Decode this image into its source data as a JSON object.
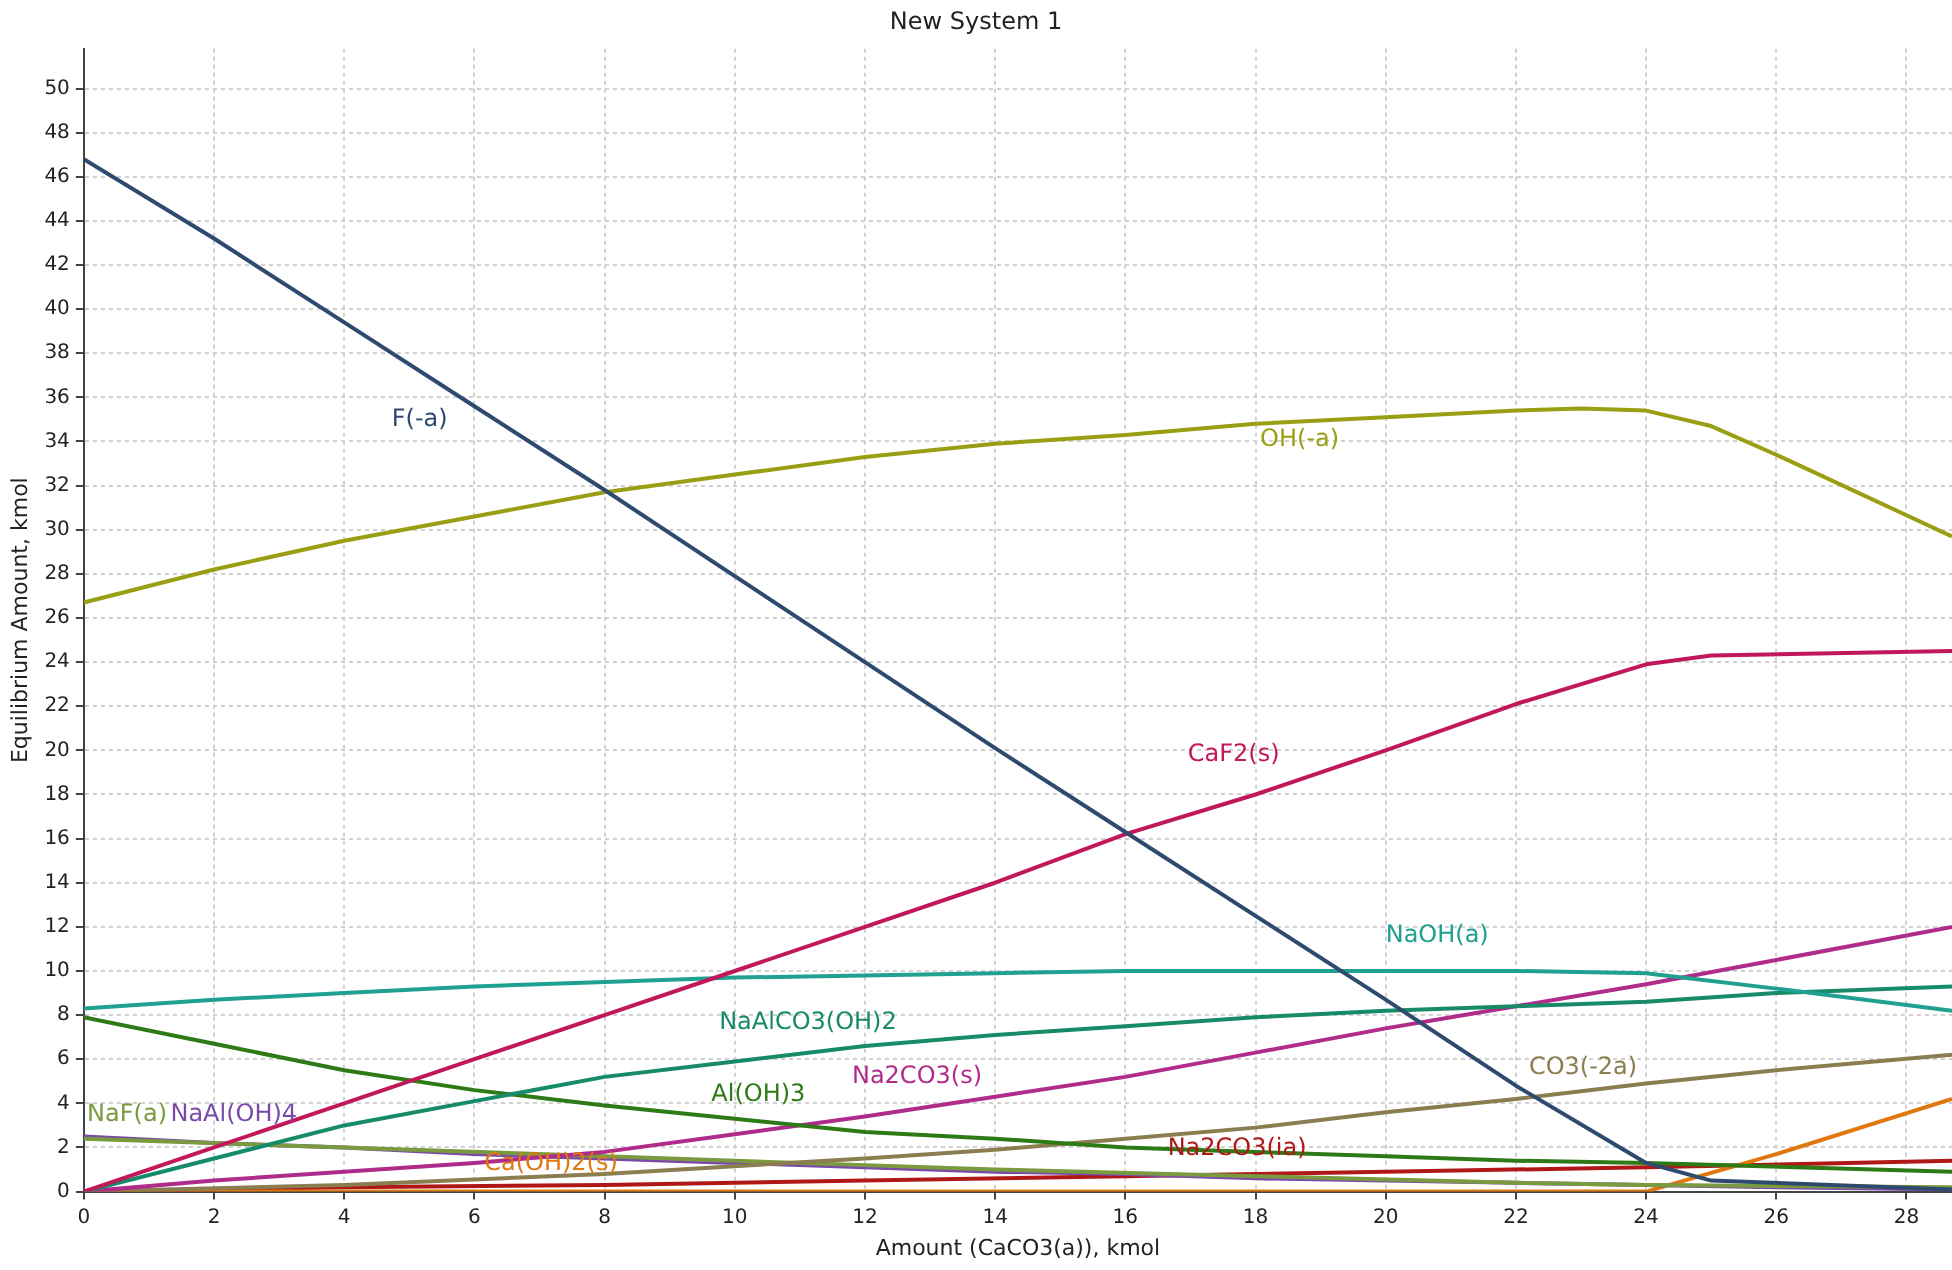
{
  "chart_data": {
    "type": "line",
    "title": "New System 1",
    "xlabel": "Amount (CaCO3(a)), kmol",
    "ylabel": "Equilibrium Amount, kmol",
    "xlim": [
      0,
      28.7
    ],
    "ylim": [
      0,
      51.8
    ],
    "xticks": [
      0,
      2,
      4,
      6,
      8,
      10,
      12,
      14,
      16,
      18,
      20,
      22,
      24,
      26,
      28
    ],
    "yticks": [
      0,
      2,
      4,
      6,
      8,
      10,
      12,
      14,
      16,
      18,
      20,
      22,
      24,
      26,
      28,
      30,
      32,
      34,
      36,
      38,
      40,
      42,
      44,
      46,
      48,
      50
    ],
    "grid": true,
    "legend": false,
    "marker": "none",
    "line_style": "solid",
    "series": [
      {
        "name": "F(-a)",
        "color": "#2e4a6e",
        "x": [
          0,
          2,
          4,
          6,
          8,
          10,
          12,
          14,
          16,
          18,
          20,
          22,
          24,
          25,
          28.7
        ],
        "values": [
          46.8,
          43.2,
          39.4,
          35.6,
          31.8,
          27.9,
          24.0,
          20.1,
          16.3,
          12.5,
          8.7,
          4.8,
          1.3,
          0.5,
          0.1
        ]
      },
      {
        "name": "OH(-a)",
        "color": "#9a9e12",
        "x": [
          0,
          2,
          4,
          6,
          8,
          10,
          12,
          14,
          16,
          18,
          20,
          22,
          23,
          24,
          25,
          26,
          28.7
        ],
        "values": [
          26.7,
          28.2,
          29.5,
          30.6,
          31.7,
          32.5,
          33.3,
          33.9,
          34.3,
          34.8,
          35.1,
          35.4,
          35.5,
          35.4,
          34.7,
          33.4,
          29.7
        ]
      },
      {
        "name": "CaF2(s)",
        "color": "#c0185a",
        "x": [
          0,
          2,
          4,
          6,
          8,
          10,
          12,
          14,
          16,
          18,
          20,
          22,
          24,
          25,
          28.7
        ],
        "values": [
          0,
          2,
          4,
          6,
          8,
          10,
          12,
          14,
          16.2,
          18,
          20,
          22.1,
          23.9,
          24.3,
          24.5
        ]
      },
      {
        "name": "NaOH(a)",
        "color": "#1fa090",
        "x": [
          0,
          2,
          4,
          6,
          8,
          10,
          12,
          14,
          16,
          18,
          20,
          22,
          24,
          26,
          28.7
        ],
        "values": [
          8.3,
          8.7,
          9.0,
          9.3,
          9.5,
          9.7,
          9.8,
          9.9,
          10.0,
          10.0,
          10.0,
          10.0,
          9.9,
          9.2,
          8.2
        ]
      },
      {
        "name": "NaAlCO3(OH)2",
        "color": "#178a6a",
        "x": [
          0,
          2,
          4,
          6,
          8,
          10,
          12,
          14,
          16,
          18,
          20,
          22,
          24,
          26,
          28.7
        ],
        "values": [
          0,
          1.5,
          3.0,
          4.1,
          5.2,
          5.9,
          6.6,
          7.1,
          7.5,
          7.9,
          8.2,
          8.4,
          8.6,
          9.0,
          9.3
        ]
      },
      {
        "name": "Al(OH)3",
        "color": "#2e7a16",
        "x": [
          0,
          2,
          4,
          6,
          8,
          10,
          12,
          14,
          16,
          18,
          20,
          22,
          24,
          28.7
        ],
        "values": [
          7.9,
          6.7,
          5.5,
          4.6,
          3.9,
          3.3,
          2.7,
          2.4,
          2.0,
          1.8,
          1.6,
          1.4,
          1.3,
          0.9
        ]
      },
      {
        "name": "Na2CO3(s)",
        "color": "#b02c8a",
        "x": [
          0,
          2,
          4,
          6,
          8,
          10,
          12,
          14,
          16,
          18,
          20,
          22,
          24,
          26,
          28.7
        ],
        "values": [
          0,
          0.5,
          0.9,
          1.3,
          1.8,
          2.6,
          3.4,
          4.3,
          5.2,
          6.3,
          7.4,
          8.4,
          9.4,
          10.5,
          12.0
        ]
      },
      {
        "name": "CO3(-2a)",
        "color": "#8a7e50",
        "x": [
          0,
          4,
          8,
          12,
          14,
          16,
          18,
          20,
          22,
          24,
          26,
          28.7
        ],
        "values": [
          0,
          0.3,
          0.8,
          1.5,
          1.9,
          2.4,
          2.9,
          3.6,
          4.2,
          4.9,
          5.5,
          6.2
        ]
      },
      {
        "name": "NaF(a)",
        "color": "#7a9a40",
        "x": [
          0,
          4,
          8,
          12,
          14,
          18,
          22,
          24,
          28.7
        ],
        "values": [
          2.4,
          2.0,
          1.6,
          1.2,
          1.0,
          0.7,
          0.4,
          0.3,
          0.2
        ]
      },
      {
        "name": "NaAl(OH)4",
        "color": "#7a4aa8",
        "x": [
          0,
          2,
          4,
          6,
          8,
          10,
          12,
          14,
          16,
          18,
          20,
          22,
          24,
          26,
          28.7
        ],
        "values": [
          2.5,
          2.2,
          2.0,
          1.7,
          1.5,
          1.3,
          1.1,
          0.9,
          0.8,
          0.6,
          0.5,
          0.4,
          0.3,
          0.2,
          0.1
        ]
      },
      {
        "name": "Ca(OH)2(s)",
        "color": "#e07810",
        "x": [
          0,
          24,
          26,
          28.7
        ],
        "values": [
          0,
          0,
          1.7,
          4.2
        ]
      },
      {
        "name": "Na2CO3(ia)",
        "color": "#b01818",
        "x": [
          0,
          4,
          8,
          12,
          16,
          20,
          24,
          28.7
        ],
        "values": [
          0,
          0.2,
          0.3,
          0.5,
          0.7,
          0.9,
          1.1,
          1.4
        ]
      }
    ]
  }
}
